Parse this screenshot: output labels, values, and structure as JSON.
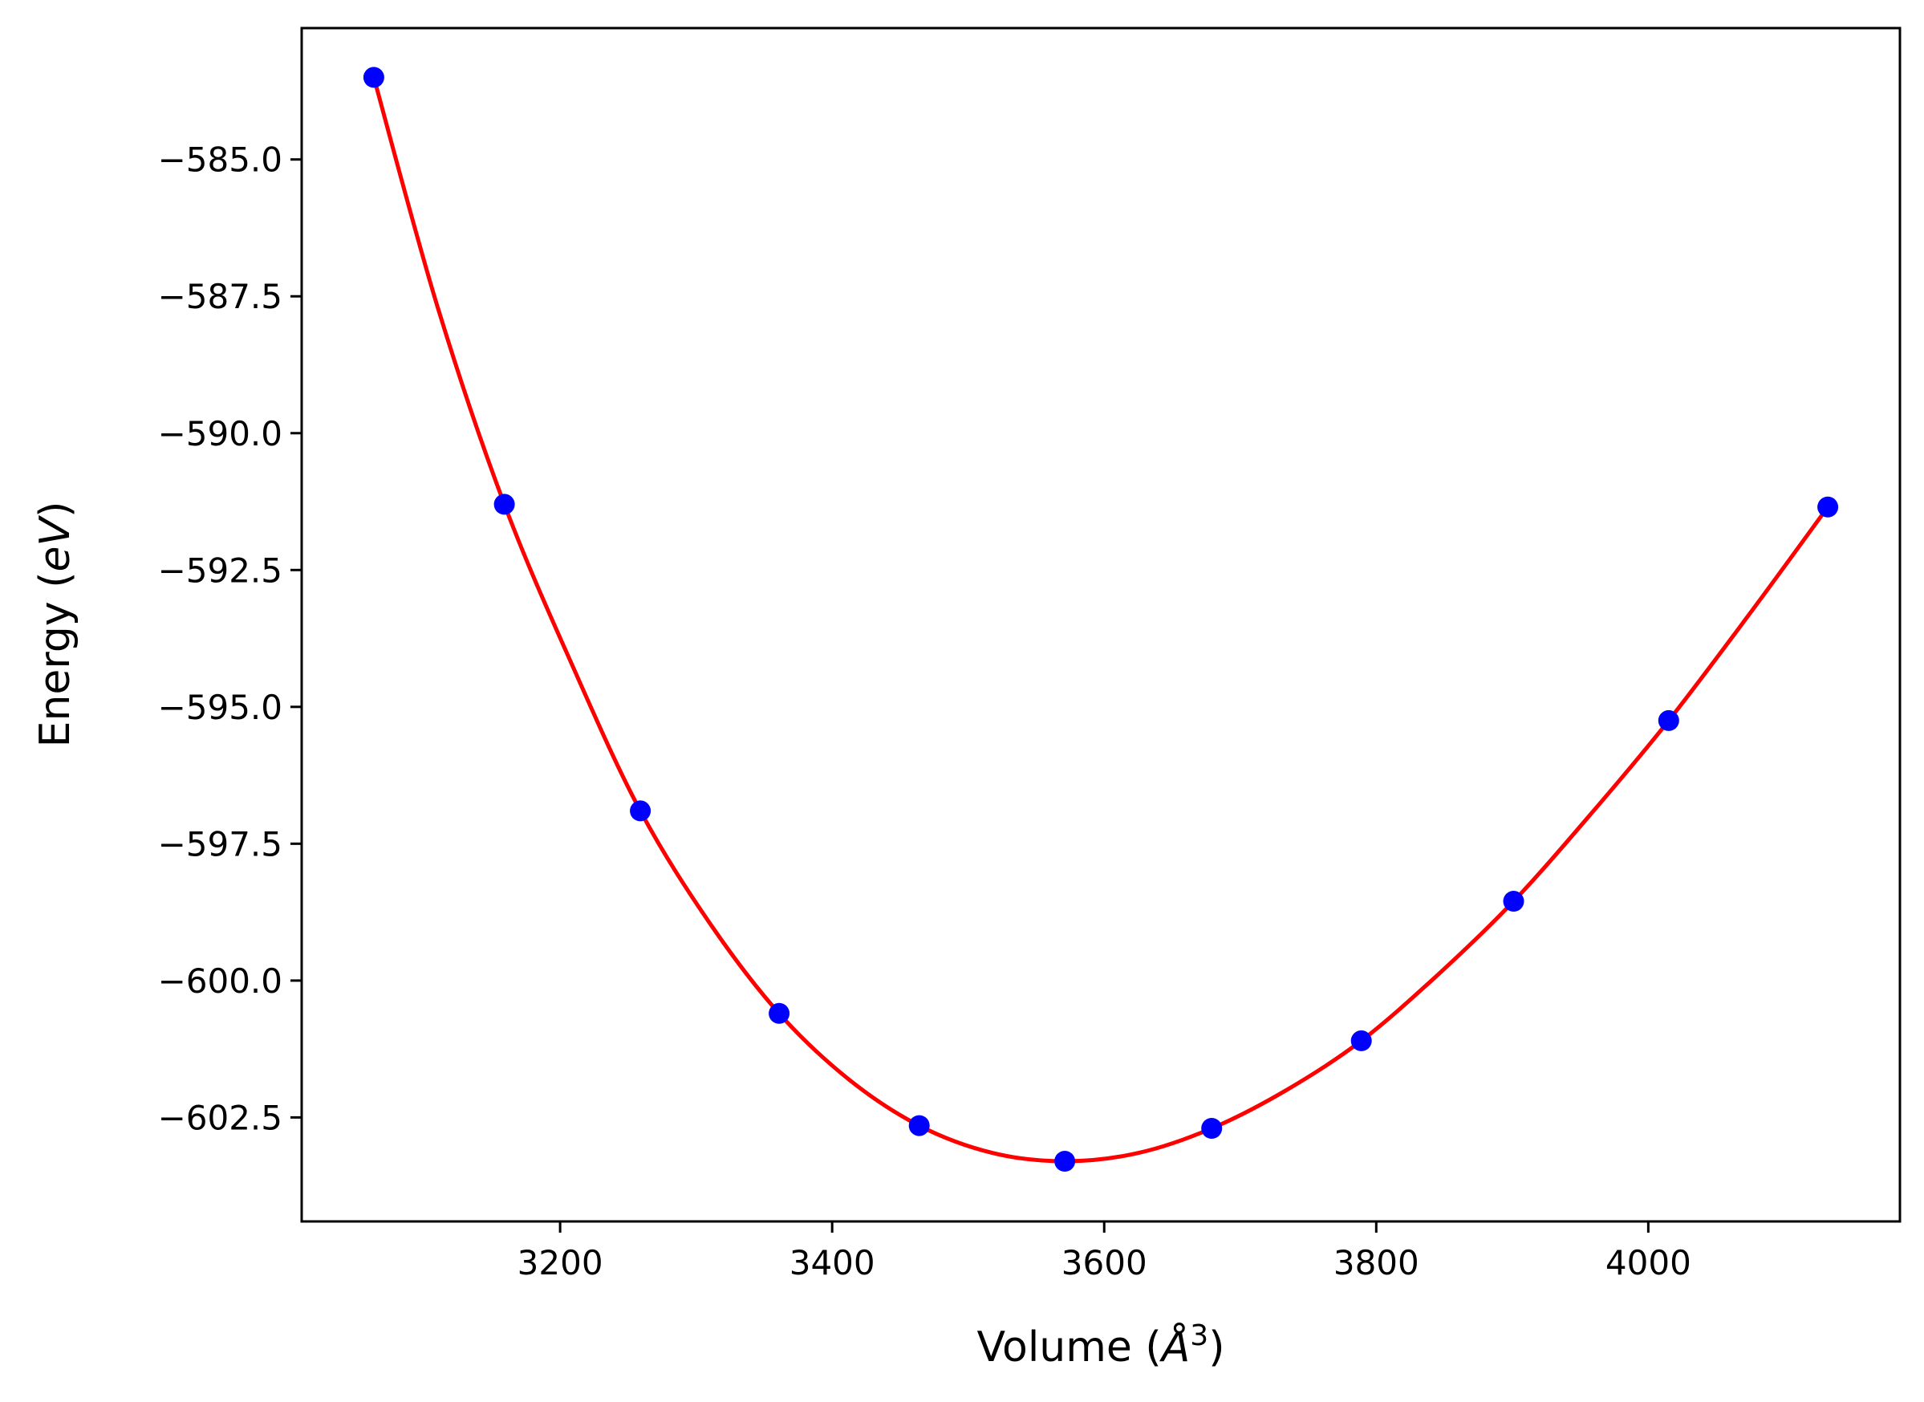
{
  "chart_data": {
    "type": "scatter",
    "xlabel": "Volume (Å³)",
    "xlabel_parts": {
      "prefix": "Volume (",
      "unit": "Å",
      "exp": "3",
      "suffix": ")"
    },
    "ylabel": "Energy (eV)",
    "ylabel_parts": {
      "prefix": "Energy (",
      "unit": "eV",
      "suffix": ")"
    },
    "xlim": [
      3010,
      4185
    ],
    "ylim": [
      -604.4,
      -582.6
    ],
    "xticks": [
      3200,
      3400,
      3600,
      3800,
      4000
    ],
    "xtick_labels": [
      "3200",
      "3400",
      "3600",
      "3800",
      "4000"
    ],
    "yticks": [
      -585.0,
      -587.5,
      -590.0,
      -592.5,
      -595.0,
      -597.5,
      -600.0,
      -602.5
    ],
    "ytick_labels": [
      "−585.0",
      "−587.5",
      "−590.0",
      "−592.5",
      "−595.0",
      "−597.5",
      "−600.0",
      "−602.5"
    ],
    "grid": false,
    "series": [
      {
        "kind": "points",
        "color": "#0000ff",
        "x": [
          3063,
          3159,
          3259,
          3361,
          3464,
          3571,
          3679,
          3789,
          3901,
          4015,
          4132
        ],
        "y": [
          -583.5,
          -591.3,
          -596.9,
          -600.6,
          -602.65,
          -603.3,
          -602.7,
          -601.1,
          -598.55,
          -595.25,
          -591.35
        ]
      },
      {
        "kind": "fit-curve",
        "color": "#ff0000",
        "x": [
          3063,
          3110,
          3159,
          3210,
          3259,
          3310,
          3361,
          3412,
          3464,
          3518,
          3571,
          3625,
          3679,
          3734,
          3789,
          3845,
          3901,
          3958,
          4015,
          4073,
          4132
        ],
        "y": [
          -583.5,
          -587.7,
          -591.3,
          -594.3,
          -596.9,
          -598.95,
          -600.6,
          -601.8,
          -602.65,
          -603.15,
          -603.3,
          -603.15,
          -602.7,
          -602.0,
          -601.1,
          -599.9,
          -598.55,
          -596.95,
          -595.25,
          -593.35,
          -591.35
        ]
      }
    ]
  }
}
